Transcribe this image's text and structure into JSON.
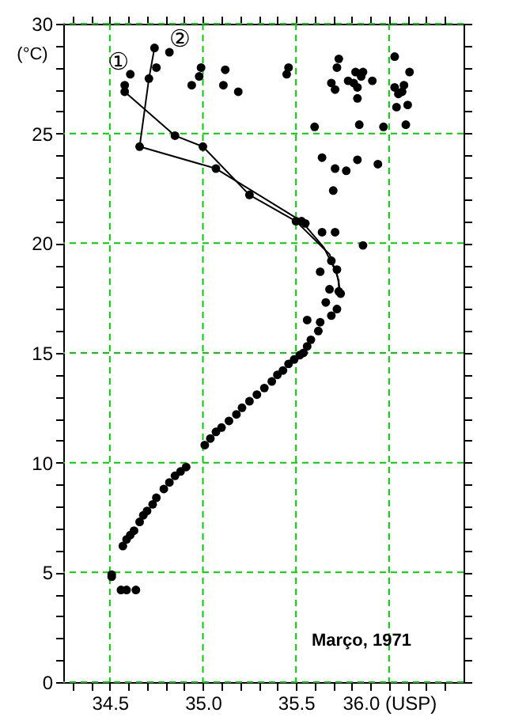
{
  "chart_data": {
    "type": "scatter",
    "ylabel": "(°C)",
    "annotations": [
      "Março, 1971"
    ],
    "xlim": [
      34.25,
      36.4
    ],
    "ylim": [
      0,
      30
    ],
    "xticks": [
      {
        "value": 34.3,
        "label": null
      },
      {
        "value": 34.4,
        "label": null
      },
      34.5,
      {
        "value": 34.6,
        "label": null
      },
      {
        "value": 34.7,
        "label": null
      },
      {
        "value": 34.8,
        "label": null
      },
      {
        "value": 34.9,
        "label": null
      },
      {
        "value": 35.0,
        "label": "35.0"
      },
      {
        "value": 35.1,
        "label": null
      },
      {
        "value": 35.2,
        "label": null
      },
      {
        "value": 35.3,
        "label": null
      },
      {
        "value": 35.4,
        "label": null
      },
      35.5,
      {
        "value": 35.6,
        "label": null
      },
      {
        "value": 35.7,
        "label": null
      },
      {
        "value": 35.8,
        "label": null
      },
      {
        "value": 35.9,
        "label": null
      },
      {
        "value": 36.0,
        "label": "36.0 (USP)"
      },
      {
        "value": 36.1,
        "label": null
      },
      {
        "value": 36.2,
        "label": null
      },
      {
        "value": 36.3,
        "label": null
      }
    ],
    "yticks": [
      0,
      {
        "value": 1,
        "label": null
      },
      {
        "value": 2,
        "label": null
      },
      {
        "value": 3,
        "label": null
      },
      {
        "value": 4,
        "label": null
      },
      5,
      {
        "value": 6,
        "label": null
      },
      {
        "value": 7,
        "label": null
      },
      {
        "value": 8,
        "label": null
      },
      {
        "value": 9,
        "label": null
      },
      10,
      {
        "value": 11,
        "label": null
      },
      {
        "value": 12,
        "label": null
      },
      {
        "value": 13,
        "label": null
      },
      {
        "value": 14,
        "label": null
      },
      15,
      {
        "value": 16,
        "label": null
      },
      {
        "value": 17,
        "label": null
      },
      {
        "value": 18,
        "label": null
      },
      {
        "value": 19,
        "label": null
      },
      20,
      {
        "value": 21,
        "label": null
      },
      {
        "value": 22,
        "label": null
      },
      {
        "value": 23,
        "label": null
      },
      {
        "value": 24,
        "label": null
      },
      25,
      {
        "value": 26,
        "label": null
      },
      {
        "value": 27,
        "label": null
      },
      {
        "value": 28,
        "label": null
      },
      {
        "value": 29,
        "label": null
      },
      30
    ],
    "grid": true,
    "marker": "circle",
    "legend": "top left",
    "series": [
      {
        "type": "line",
        "name": "①",
        "color": "#000000",
        "marker": "none",
        "line_style": "solid",
        "x": [
          34.58,
          34.85,
          35.0,
          35.25,
          35.5,
          35.68,
          35.73,
          35.73
        ],
        "values": [
          26.9,
          24.9,
          24.4,
          22.2,
          21.0,
          19.5,
          18.3,
          17.8
        ]
      },
      {
        "type": "line",
        "name": "②",
        "color": "#000000",
        "marker": "none",
        "line_style": "solid",
        "x": [
          34.74,
          34.71,
          34.66,
          35.07,
          35.53,
          35.65,
          35.72,
          35.74
        ],
        "values": [
          28.9,
          27.5,
          24.4,
          23.4,
          21.0,
          19.8,
          18.6,
          17.7
        ]
      },
      {
        "type": "scatter",
        "color": "#000000",
        "x": [
          34.61,
          34.58,
          34.58,
          34.74,
          34.82,
          34.75,
          34.71,
          34.99,
          34.98,
          34.94,
          35.12,
          35.11,
          35.19,
          34.66,
          34.85,
          35.0,
          35.07,
          35.25,
          35.46,
          35.45,
          35.73,
          35.72,
          35.69,
          35.71,
          35.78,
          35.82,
          35.86,
          35.85,
          35.81,
          35.83,
          35.83,
          35.91,
          36.03,
          36.11,
          36.03,
          36.08,
          36.05,
          36.07,
          36.04,
          36.1,
          35.6,
          35.84,
          35.97,
          36.09,
          35.64,
          35.71,
          35.77,
          35.83,
          35.94,
          35.7,
          35.5,
          35.53,
          35.55,
          35.64,
          35.71,
          35.86,
          35.69,
          35.72,
          35.63,
          35.68,
          35.74,
          35.73,
          35.66,
          35.72,
          35.69,
          35.63,
          35.56,
          35.62,
          35.58,
          35.56,
          35.54,
          35.52,
          35.49,
          35.46,
          35.43,
          35.4,
          35.37,
          35.33,
          35.29,
          35.25,
          35.21,
          35.18,
          35.14,
          35.1,
          35.07,
          35.04,
          35.01,
          34.91,
          34.88,
          34.85,
          34.82,
          34.79,
          34.75,
          34.73,
          34.7,
          34.68,
          34.66,
          34.63,
          34.61,
          34.59,
          34.57,
          34.51,
          34.51,
          34.56,
          34.59,
          34.64
        ],
        "values": [
          27.7,
          27.2,
          26.9,
          28.9,
          28.7,
          28.0,
          27.5,
          28.0,
          27.6,
          27.2,
          27.9,
          27.2,
          26.9,
          24.4,
          24.9,
          24.4,
          23.4,
          22.2,
          28.0,
          27.7,
          28.4,
          28.0,
          27.3,
          27.0,
          27.4,
          27.8,
          27.8,
          27.6,
          27.3,
          27.1,
          26.6,
          27.4,
          28.5,
          27.8,
          27.1,
          27.2,
          26.8,
          26.9,
          26.2,
          26.3,
          25.3,
          25.4,
          25.3,
          25.4,
          23.9,
          23.4,
          23.3,
          23.8,
          23.6,
          22.4,
          21.0,
          21.0,
          20.9,
          20.5,
          20.5,
          19.9,
          19.2,
          18.8,
          18.7,
          17.9,
          17.7,
          17.8,
          17.3,
          17.0,
          16.7,
          16.4,
          16.5,
          16.0,
          15.6,
          15.3,
          15.0,
          14.9,
          14.7,
          14.5,
          14.2,
          14.0,
          13.7,
          13.4,
          13.1,
          12.8,
          12.5,
          12.2,
          11.9,
          11.6,
          11.4,
          11.1,
          10.8,
          9.8,
          9.6,
          9.4,
          9.1,
          8.8,
          8.4,
          8.1,
          7.8,
          7.6,
          7.3,
          6.9,
          6.7,
          6.5,
          6.2,
          4.9,
          4.8,
          4.2,
          4.2,
          4.2
        ]
      }
    ]
  }
}
